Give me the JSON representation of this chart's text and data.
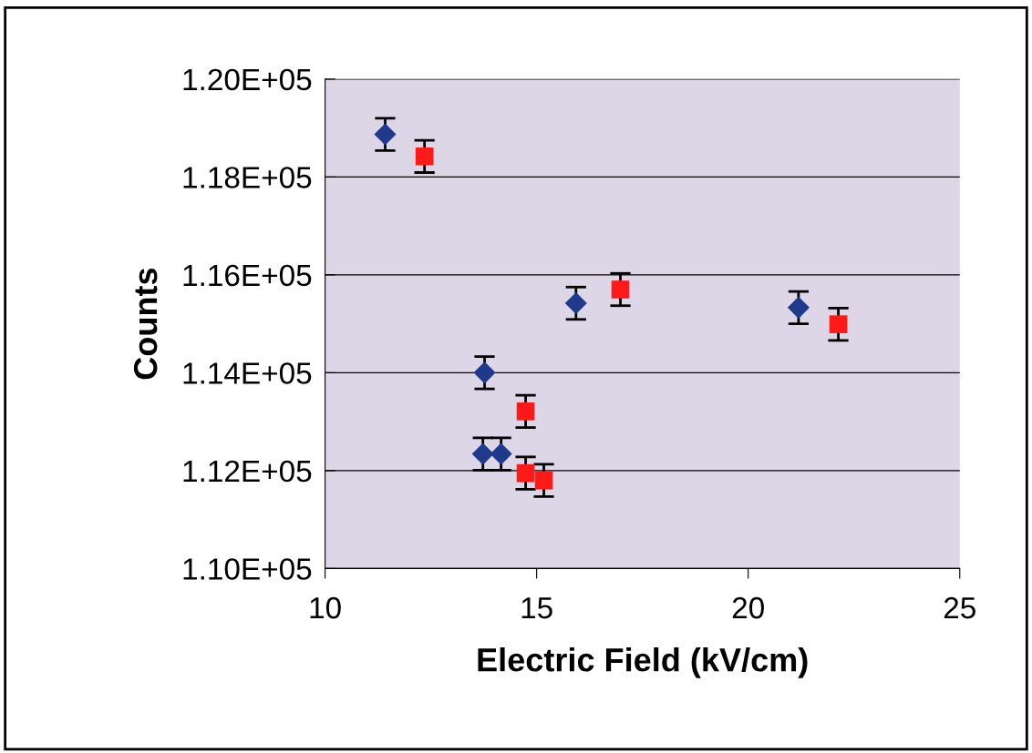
{
  "chart_data": {
    "type": "scatter",
    "xlabel": "Electric Field (kV/cm)",
    "ylabel": "Counts",
    "xlim": [
      10,
      25
    ],
    "xticks": [
      10,
      15,
      20,
      25
    ],
    "ylim": [
      110000,
      120000
    ],
    "yticks": [
      {
        "value": 110000,
        "label": "1.10E+05"
      },
      {
        "value": 112000,
        "label": "1.12E+05"
      },
      {
        "value": 114000,
        "label": "1.14E+05"
      },
      {
        "value": 116000,
        "label": "1.16E+05"
      },
      {
        "value": 118000,
        "label": "1.18E+05"
      },
      {
        "value": 120000,
        "label": "1.20E+05"
      }
    ],
    "grid": "y",
    "legend": false,
    "series": [
      {
        "color": "#1f3a8a",
        "marker": "diamond",
        "x": [
          11.42,
          13.77,
          13.73,
          14.16,
          15.93,
          21.19
        ],
        "values": [
          118870,
          114000,
          112340,
          112340,
          115420,
          115330
        ],
        "errors": [
          330,
          330,
          330,
          330,
          330,
          330
        ]
      },
      {
        "color": "#ff1a1a",
        "marker": "square",
        "x": [
          12.35,
          14.74,
          14.74,
          15.17,
          16.98,
          22.13
        ],
        "values": [
          118420,
          113210,
          111950,
          111800,
          115700,
          114990
        ],
        "errors": [
          330,
          330,
          330,
          330,
          330,
          330
        ]
      }
    ]
  }
}
